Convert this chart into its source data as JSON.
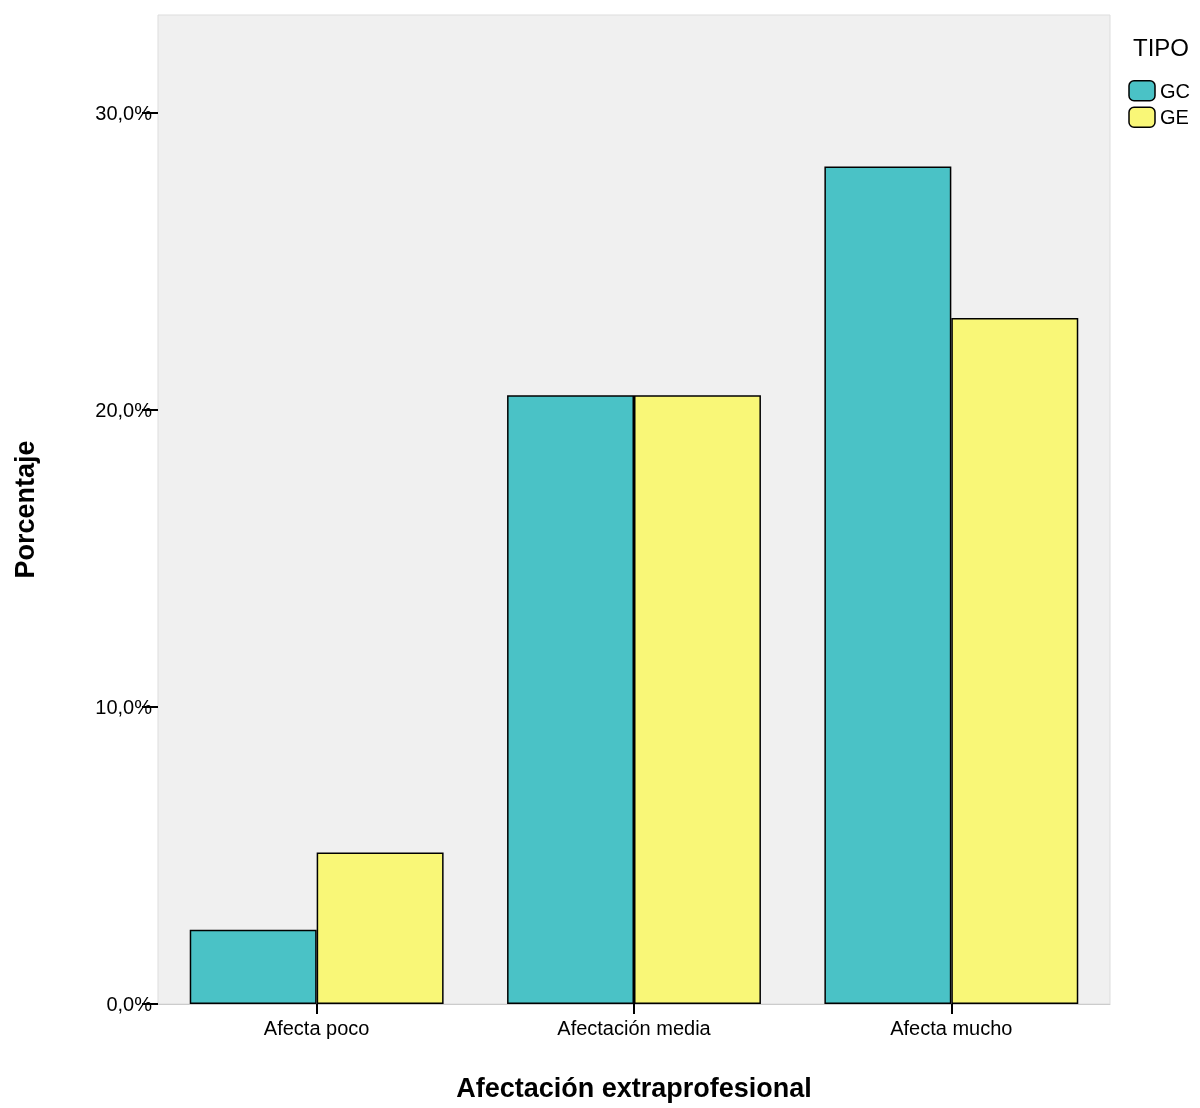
{
  "chart_data": {
    "type": "bar",
    "xlabel": "Afectación extraprofesional",
    "ylabel": "Porcentaje",
    "legend_title": "TIPO",
    "categories": [
      "Afecta poco",
      "Afectación media",
      "Afecta mucho"
    ],
    "series": [
      {
        "name": "GC",
        "color": "#4ac2c6",
        "values": [
          2.5,
          20.5,
          28.2
        ]
      },
      {
        "name": "GE",
        "color": "#f9f777",
        "values": [
          5.1,
          20.5,
          23.1
        ]
      }
    ],
    "ylim": [
      0,
      33.3
    ],
    "yticks": [
      {
        "value": 0,
        "label": "0,0%"
      },
      {
        "value": 10,
        "label": "10,0%"
      },
      {
        "value": 20,
        "label": "20,0%"
      },
      {
        "value": 30,
        "label": "30,0%"
      }
    ],
    "grid": false,
    "legend": "top right"
  }
}
